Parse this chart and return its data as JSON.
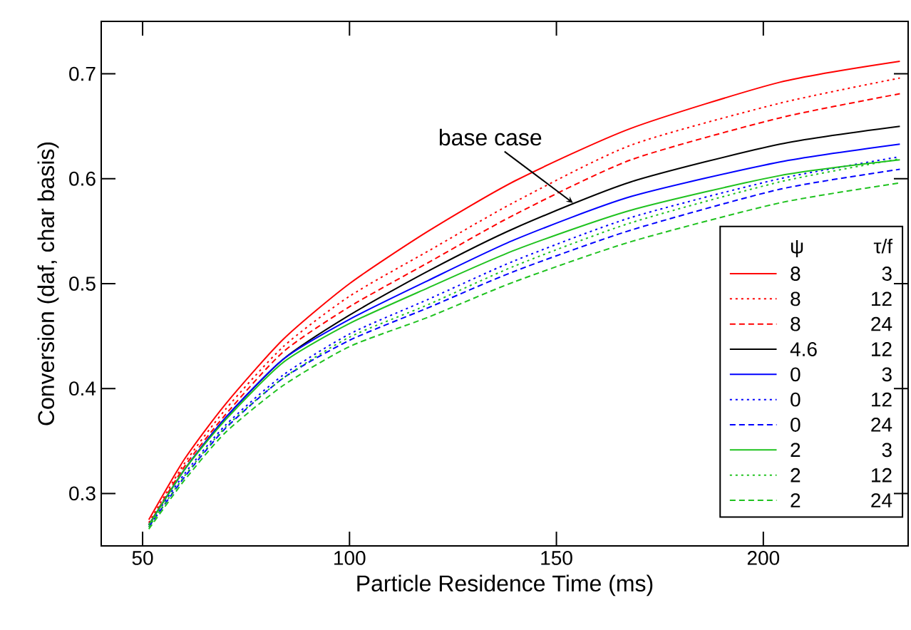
{
  "chart_data": {
    "type": "line",
    "xlabel": "Particle Residence Time (ms)",
    "ylabel": "Conversion (daf, char basis)",
    "x": [
      51.5,
      60,
      70,
      84,
      100,
      119,
      140,
      168,
      204,
      233
    ],
    "xlim": [
      40,
      235
    ],
    "xticks": [
      50,
      100,
      150,
      200
    ],
    "ylim": [
      0.25,
      0.75
    ],
    "yticks": [
      0.3,
      0.4,
      0.5,
      0.6,
      0.7
    ],
    "grid": false,
    "legend": "right",
    "legend_title": "ψ τ/f",
    "marker": "none",
    "annotations": [
      {
        "text": "base case",
        "x": 154,
        "y": 0.577
      }
    ],
    "series": [
      {
        "name": "8 3",
        "color": "#ff0000",
        "line_style": "solid",
        "values": [
          0.275,
          0.332,
          0.385,
          0.447,
          0.5,
          0.55,
          0.598,
          0.648,
          0.692,
          0.712
        ]
      },
      {
        "name": "8 12",
        "color": "#ff0000",
        "line_style": "dotted",
        "values": [
          0.272,
          0.328,
          0.38,
          0.44,
          0.488,
          0.531,
          0.578,
          0.632,
          0.672,
          0.696
        ]
      },
      {
        "name": "8 24",
        "color": "#ff0000",
        "line_style": "dashed",
        "values": [
          0.27,
          0.325,
          0.375,
          0.435,
          0.478,
          0.52,
          0.566,
          0.618,
          0.658,
          0.681
        ]
      },
      {
        "name": "4.6 12",
        "color": "#000000",
        "line_style": "solid",
        "values": [
          0.27,
          0.322,
          0.372,
          0.428,
          0.47,
          0.512,
          0.553,
          0.597,
          0.633,
          0.65
        ]
      },
      {
        "name": "0 3",
        "color": "#0000ff",
        "line_style": "solid",
        "values": [
          0.27,
          0.322,
          0.372,
          0.428,
          0.466,
          0.503,
          0.542,
          0.583,
          0.616,
          0.633
        ]
      },
      {
        "name": "0 12",
        "color": "#0000ff",
        "line_style": "dotted",
        "values": [
          0.27,
          0.318,
          0.365,
          0.413,
          0.452,
          0.485,
          0.522,
          0.563,
          0.6,
          0.621
        ]
      },
      {
        "name": "0 24",
        "color": "#0000ff",
        "line_style": "dashed",
        "values": [
          0.268,
          0.315,
          0.362,
          0.41,
          0.446,
          0.477,
          0.512,
          0.551,
          0.59,
          0.609
        ]
      },
      {
        "name": "2 3",
        "color": "#1fc21f",
        "line_style": "solid",
        "values": [
          0.27,
          0.322,
          0.37,
          0.425,
          0.462,
          0.496,
          0.532,
          0.57,
          0.603,
          0.618
        ]
      },
      {
        "name": "2 12",
        "color": "#1fc21f",
        "line_style": "dotted",
        "values": [
          0.268,
          0.316,
          0.363,
          0.41,
          0.449,
          0.48,
          0.517,
          0.558,
          0.597,
          0.619
        ]
      },
      {
        "name": "2 24",
        "color": "#1fc21f",
        "line_style": "dashed",
        "values": [
          0.266,
          0.312,
          0.358,
          0.403,
          0.44,
          0.468,
          0.502,
          0.54,
          0.577,
          0.596
        ]
      }
    ]
  }
}
